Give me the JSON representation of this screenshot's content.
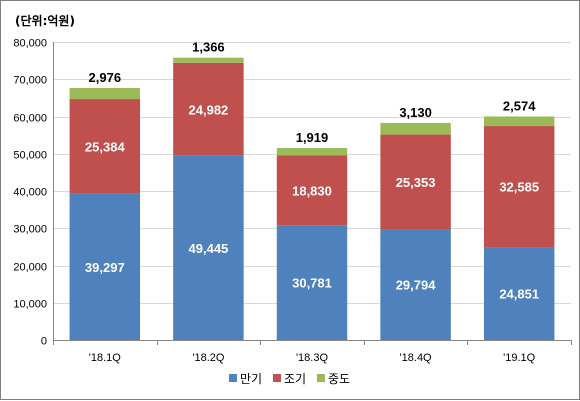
{
  "chart_data": {
    "type": "bar",
    "stacked": true,
    "unit_label": "(단위:억원)",
    "categories": [
      "'18.1Q",
      "'18.2Q",
      "'18.3Q",
      "'18.4Q",
      "'19.1Q"
    ],
    "series": [
      {
        "name": "만기",
        "color": "#4f81bd",
        "values": [
          39297,
          49445,
          30781,
          29794,
          24851
        ],
        "labels": [
          "39,297",
          "49,445",
          "30,781",
          "29,794",
          "24,851"
        ]
      },
      {
        "name": "조기",
        "color": "#c0504d",
        "values": [
          25384,
          24982,
          18830,
          25353,
          32585
        ],
        "labels": [
          "25,384",
          "24,982",
          "18,830",
          "25,353",
          "32,585"
        ]
      },
      {
        "name": "중도",
        "color": "#9bbb59",
        "values": [
          2976,
          1366,
          1919,
          3130,
          2574
        ],
        "labels": [
          "2,976",
          "1,366",
          "1,919",
          "3,130",
          "2,574"
        ]
      }
    ],
    "ylim": [
      0,
      80000
    ],
    "yticks": [
      0,
      10000,
      20000,
      30000,
      40000,
      50000,
      60000,
      70000,
      80000
    ],
    "ytick_labels": [
      "0",
      "10,000",
      "20,000",
      "30,000",
      "40,000",
      "50,000",
      "60,000",
      "70,000",
      "80,000"
    ],
    "grid": true,
    "legend_position": "bottom"
  }
}
